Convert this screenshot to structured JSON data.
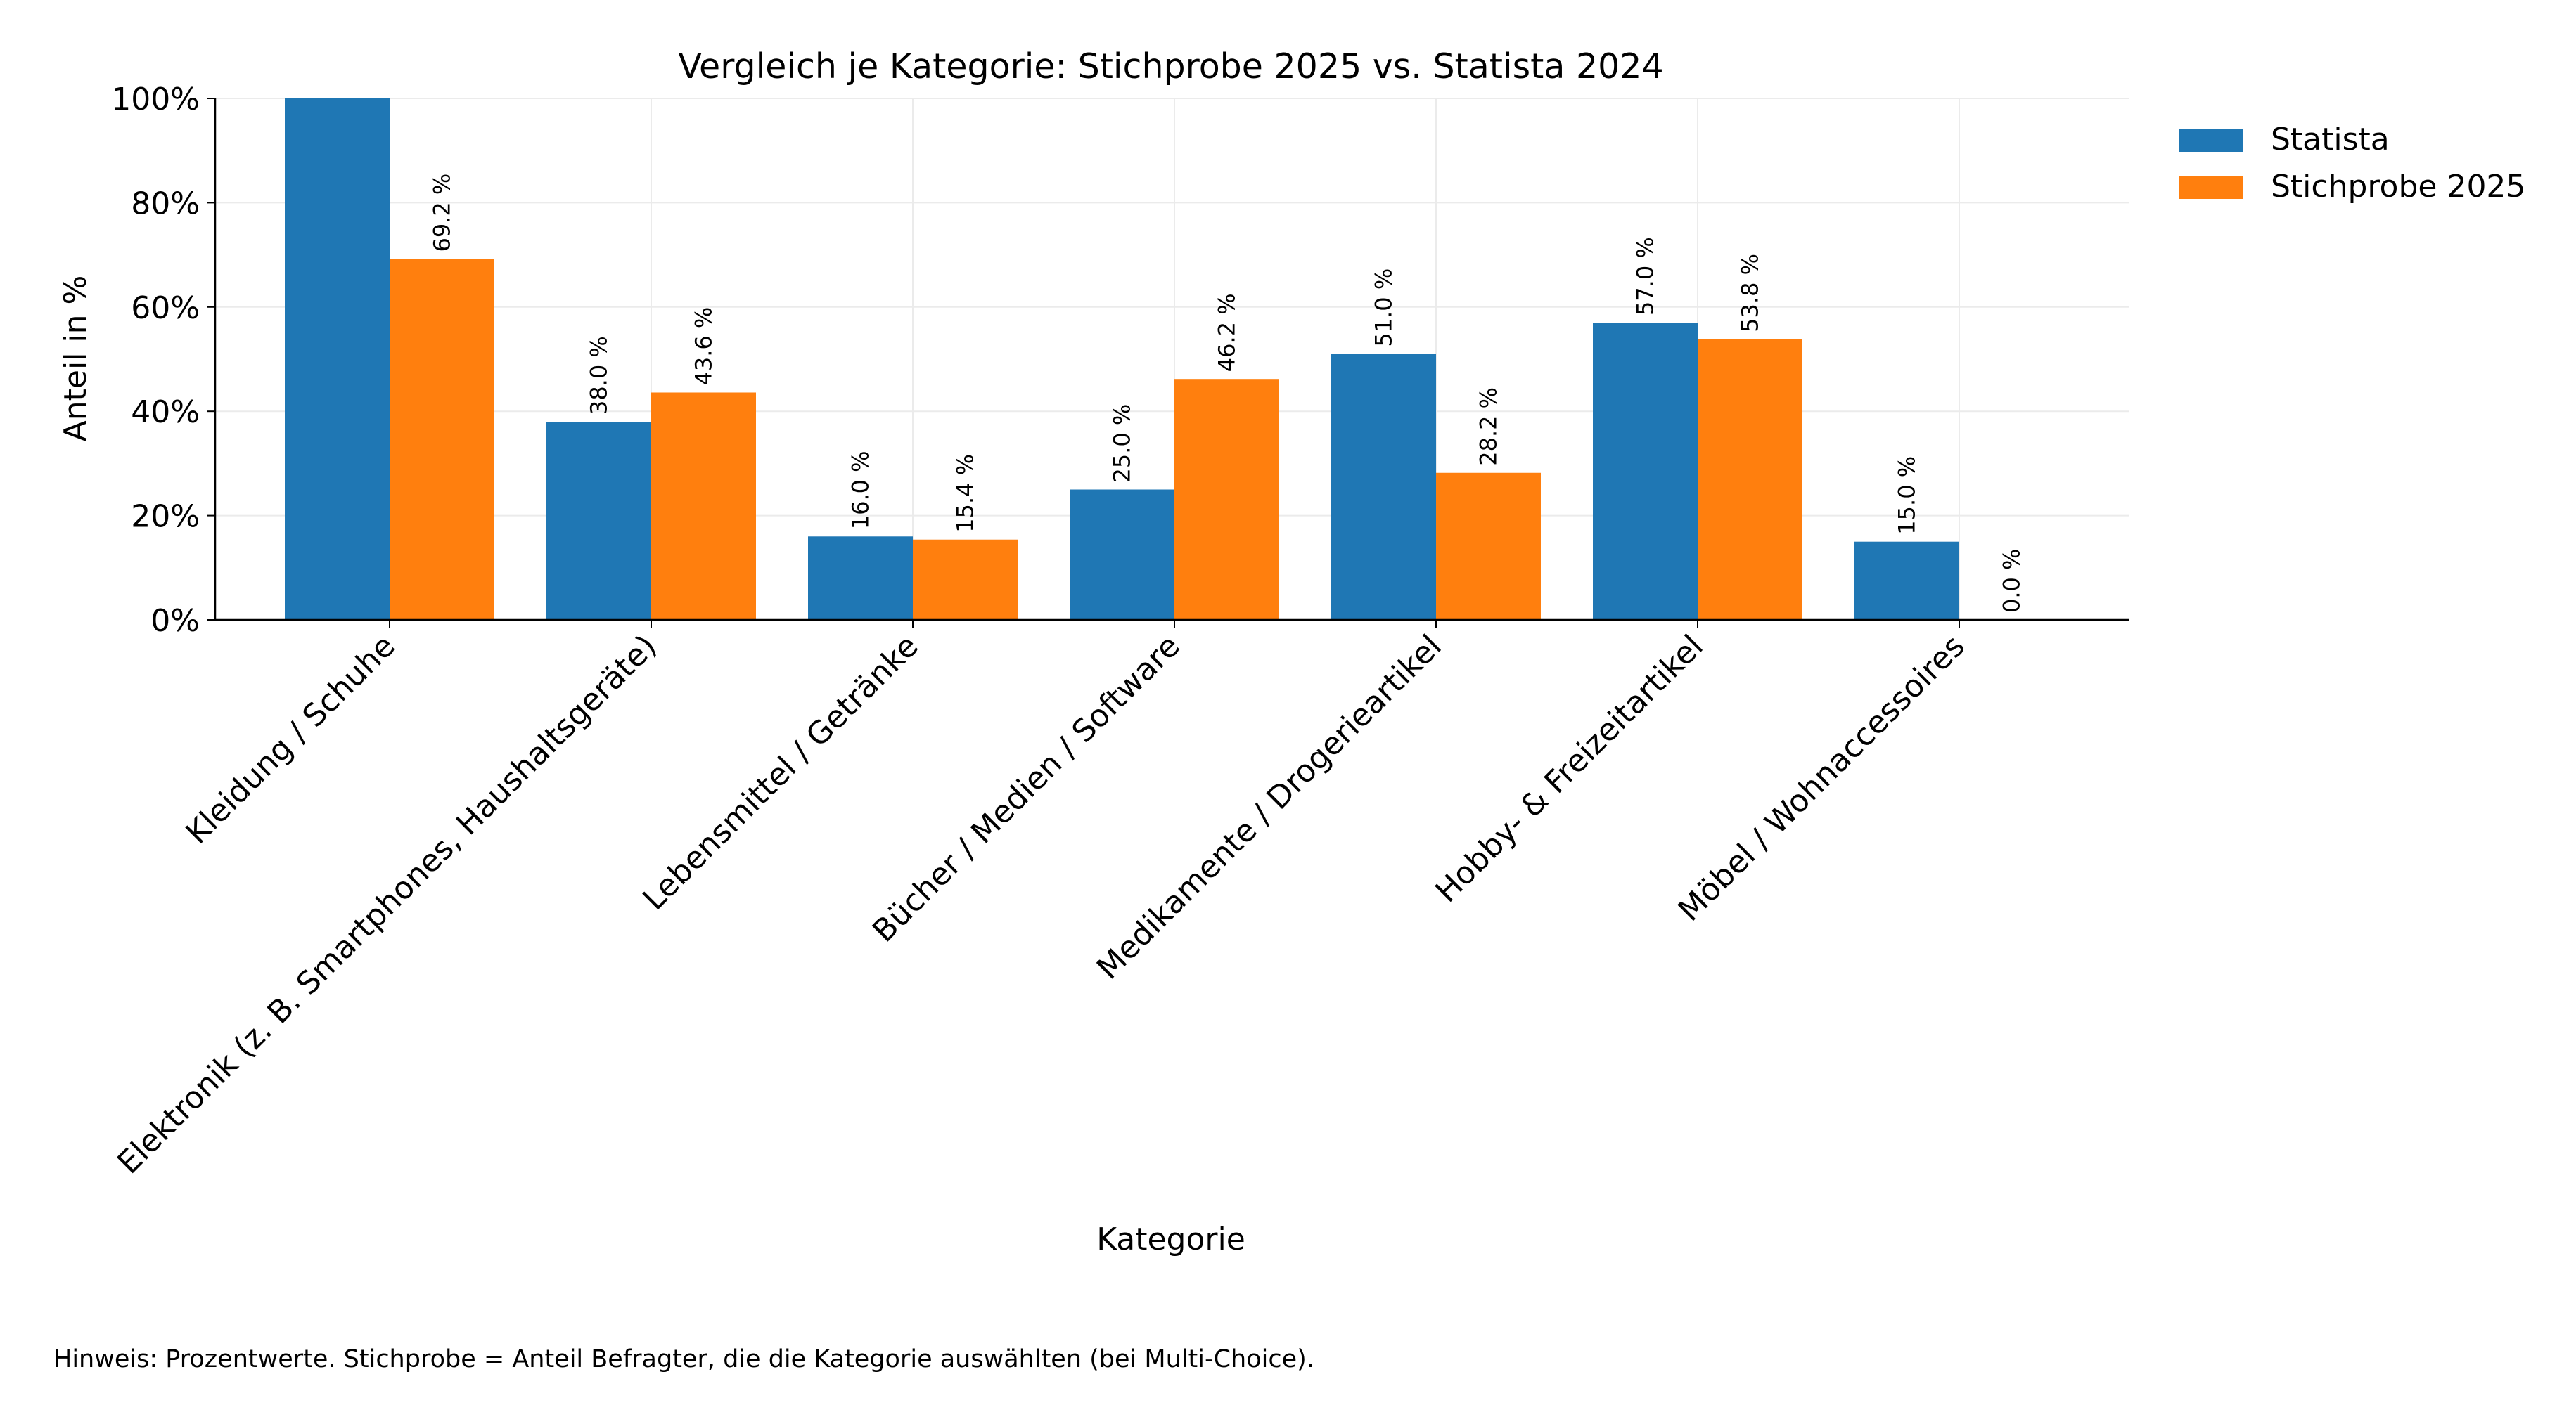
{
  "chart_data": {
    "type": "bar",
    "title": "Vergleich je Kategorie: Stichprobe 2025 vs. Statista 2024",
    "xlabel": "Kategorie",
    "ylabel": "Anteil in %",
    "ylim": [
      0,
      100
    ],
    "yticks": [
      0,
      20,
      40,
      60,
      80,
      100
    ],
    "ytick_labels": [
      "0%",
      "20%",
      "40%",
      "60%",
      "80%",
      "100%"
    ],
    "grid": true,
    "legend_position": "top-right outside",
    "categories": [
      "Kleidung / Schuhe",
      "Elektronik (z. B. Smartphones, Haushaltsgeräte)",
      "Lebensmittel / Getränke",
      "Bücher / Medien / Software",
      "Medikamente / Drogerieartikel",
      "Hobby- & Freizeitartikel",
      "Möbel / Wohnaccessoires"
    ],
    "series": [
      {
        "name": "Statista",
        "color": "#1f77b4",
        "values": [
          100.0,
          38.0,
          16.0,
          25.0,
          51.0,
          57.0,
          15.0
        ],
        "labels": [
          "",
          "38.0 %",
          "16.0 %",
          "25.0 %",
          "51.0 %",
          "57.0 %",
          "15.0 %"
        ]
      },
      {
        "name": "Stichprobe 2025",
        "color": "#ff7f0e",
        "values": [
          69.2,
          43.6,
          15.4,
          46.2,
          28.2,
          53.8,
          0.0
        ],
        "labels": [
          "69.2 %",
          "43.6 %",
          "15.4 %",
          "46.2 %",
          "28.2 %",
          "53.8 %",
          "0.0 %"
        ]
      }
    ]
  },
  "footnote": "Hinweis: Prozentwerte. Stichprobe = Anteil Befragter, die die Kategorie auswählten (bei Multi-Choice)."
}
